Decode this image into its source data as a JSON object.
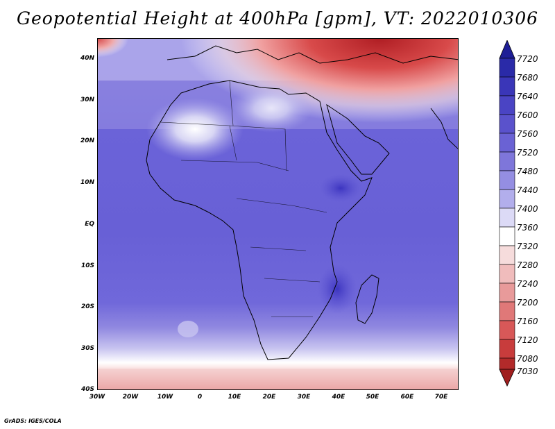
{
  "title": "Geopotential Height at 400hPa [gpm], VT: 2022010306",
  "lat_labels": [
    "40N",
    "30N",
    "20N",
    "10N",
    "EQ",
    "10S",
    "20S",
    "30S",
    "40S"
  ],
  "lon_labels": [
    "30W",
    "20W",
    "10W",
    "0",
    "10E",
    "20E",
    "30E",
    "40E",
    "50E",
    "60E",
    "70E"
  ],
  "colorbar": {
    "levels": [
      "7720",
      "7680",
      "7640",
      "7600",
      "7560",
      "7520",
      "7480",
      "7440",
      "7400",
      "7360",
      "7320",
      "7280",
      "7240",
      "7200",
      "7160",
      "7120",
      "7080",
      "7030"
    ],
    "top_color": "#1e1e96",
    "bottom_color": "#a01e1e"
  },
  "credit": "GrADS: IGES/COLA"
}
